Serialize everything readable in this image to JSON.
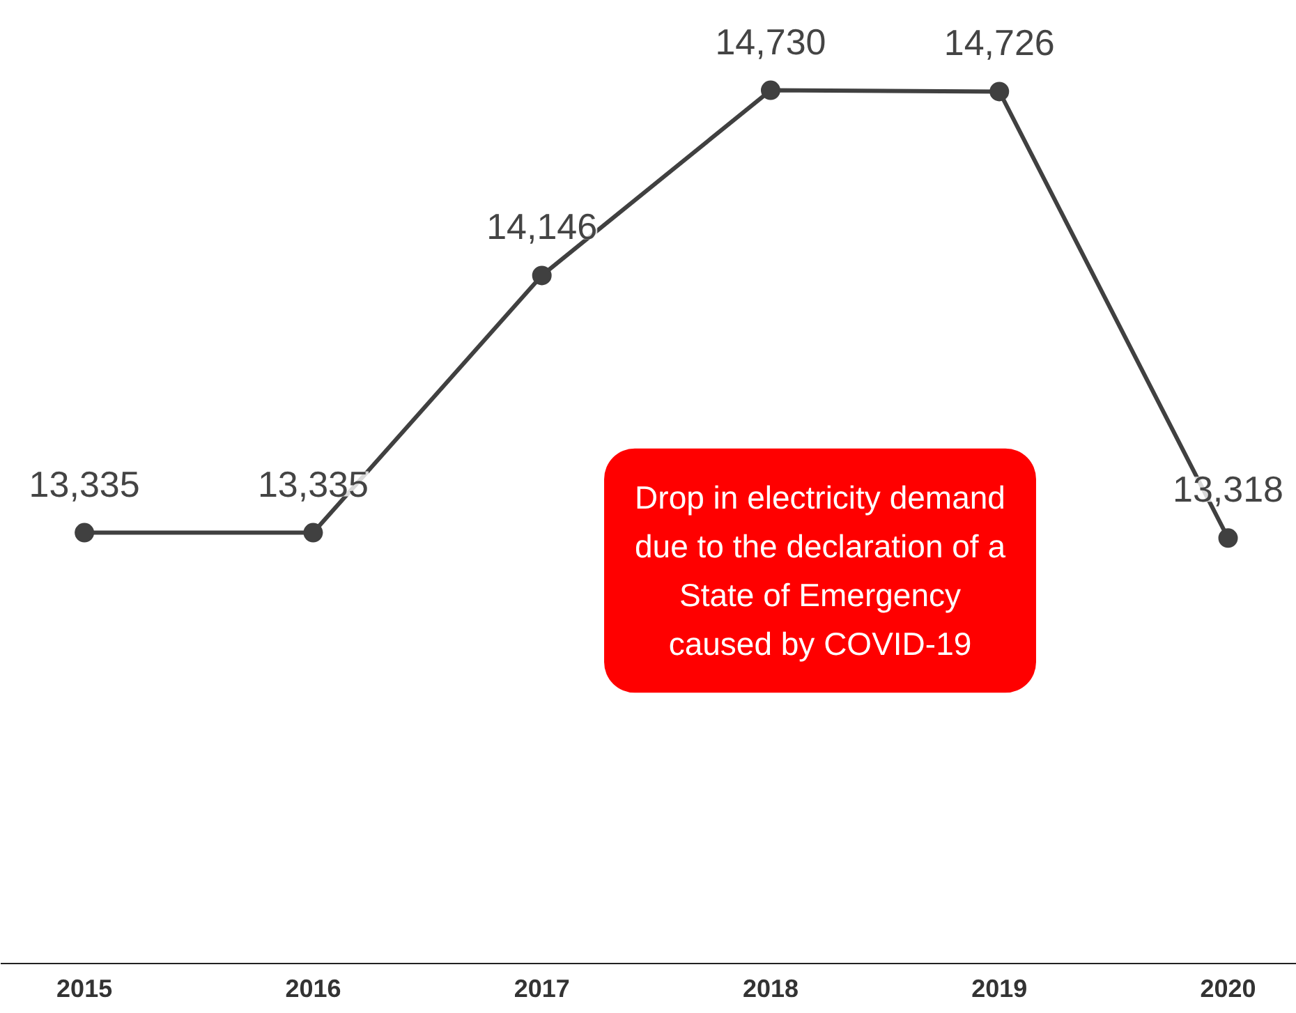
{
  "chart_data": {
    "type": "line",
    "categories": [
      "2015",
      "2016",
      "2017",
      "2018",
      "2019",
      "2020"
    ],
    "series": [
      {
        "color": "#404040",
        "values": [
          13335,
          13335,
          14146,
          14730,
          14726,
          13318
        ],
        "value_labels": [
          "13,335",
          "13,335",
          "14,146",
          "14,730",
          "14,726",
          "13,318"
        ]
      }
    ],
    "marker": "circle",
    "grid": false,
    "tick_labels": "x",
    "annotations": [
      "Drop in electricity demand\ndue to the declaration of a\nState of Emergency\ncaused by COVID-19"
    ]
  }
}
